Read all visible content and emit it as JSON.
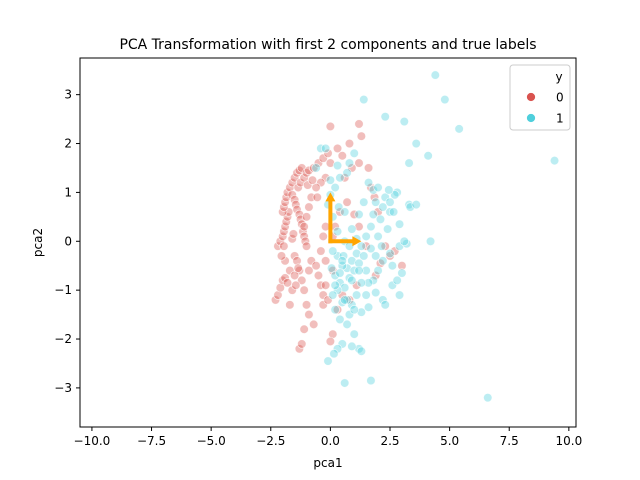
{
  "chart_data": {
    "type": "scatter",
    "title": "PCA Transformation with first 2 components and true labels",
    "xlabel": "pca1",
    "ylabel": "pca2",
    "xlim": [
      -10.5,
      10.3
    ],
    "ylim": [
      -3.8,
      3.75
    ],
    "xticks": [
      -10.0,
      -7.5,
      -5.0,
      -2.5,
      0.0,
      2.5,
      5.0,
      7.5,
      10.0
    ],
    "xtick_labels": [
      "−10.0",
      "−7.5",
      "−5.0",
      "−2.5",
      "0.0",
      "2.5",
      "5.0",
      "7.5",
      "10.0"
    ],
    "yticks": [
      -3,
      -2,
      -1,
      0,
      1,
      2,
      3
    ],
    "ytick_labels": [
      "−3",
      "−2",
      "−1",
      "0",
      "1",
      "2",
      "3"
    ],
    "grid": false,
    "legend": {
      "title": "y",
      "placement": "top-right",
      "entries": [
        {
          "label": "0",
          "color": "#d9534f"
        },
        {
          "label": "1",
          "color": "#4fcfdc"
        }
      ]
    },
    "series": [
      {
        "name": "0",
        "color": "#d9534f",
        "points": [
          [
            -2.3,
            -1.2
          ],
          [
            -2.2,
            -1.1
          ],
          [
            -2.1,
            -0.95
          ],
          [
            -2.0,
            -0.8
          ],
          [
            -1.9,
            -0.75
          ],
          [
            -1.8,
            -0.85
          ],
          [
            -1.7,
            -0.6
          ],
          [
            -2.2,
            -0.1
          ],
          [
            -2.1,
            0.0
          ],
          [
            -2.0,
            0.1
          ],
          [
            -1.95,
            0.2
          ],
          [
            -1.9,
            0.3
          ],
          [
            -1.85,
            0.4
          ],
          [
            -1.8,
            0.5
          ],
          [
            -1.75,
            0.6
          ],
          [
            -2.0,
            0.6
          ],
          [
            -1.95,
            0.7
          ],
          [
            -1.9,
            0.8
          ],
          [
            -1.85,
            0.9
          ],
          [
            -1.8,
            1.0
          ],
          [
            -1.7,
            1.1
          ],
          [
            -1.6,
            1.2
          ],
          [
            -1.5,
            1.3
          ],
          [
            -1.4,
            1.4
          ],
          [
            -1.3,
            1.45
          ],
          [
            -1.2,
            1.5
          ],
          [
            -1.6,
            0.95
          ],
          [
            -1.5,
            0.85
          ],
          [
            -1.45,
            0.75
          ],
          [
            -1.4,
            0.65
          ],
          [
            -1.3,
            0.55
          ],
          [
            -1.25,
            0.45
          ],
          [
            -1.2,
            0.35
          ],
          [
            -1.15,
            0.2
          ],
          [
            -1.1,
            0.1
          ],
          [
            -1.05,
            0.0
          ],
          [
            -1.0,
            -0.1
          ],
          [
            -1.35,
            1.1
          ],
          [
            -1.25,
            1.2
          ],
          [
            -1.1,
            1.3
          ],
          [
            -1.0,
            1.4
          ],
          [
            -0.9,
            1.45
          ],
          [
            -0.7,
            1.5
          ],
          [
            -0.5,
            1.6
          ],
          [
            -0.3,
            1.7
          ],
          [
            -0.1,
            1.8
          ],
          [
            0.0,
            1.6
          ],
          [
            -0.2,
            1.3
          ],
          [
            -0.4,
            1.2
          ],
          [
            -0.6,
            1.1
          ],
          [
            -0.8,
            0.9
          ],
          [
            -0.9,
            0.7
          ],
          [
            -1.0,
            0.5
          ],
          [
            -1.1,
            0.3
          ],
          [
            -1.5,
            -0.3
          ],
          [
            -1.4,
            -0.4
          ],
          [
            -1.3,
            -0.6
          ],
          [
            -1.2,
            -0.8
          ],
          [
            -1.1,
            -1.0
          ],
          [
            -0.9,
            -0.6
          ],
          [
            -0.8,
            -0.4
          ],
          [
            -0.6,
            -0.5
          ],
          [
            -0.5,
            -0.7
          ],
          [
            -0.4,
            -0.9
          ],
          [
            -0.3,
            -1.1
          ],
          [
            -0.2,
            -0.9
          ],
          [
            -1.0,
            -1.3
          ],
          [
            -0.9,
            -1.5
          ],
          [
            -1.1,
            -1.8
          ],
          [
            -1.3,
            -2.2
          ],
          [
            -1.2,
            -2.1
          ],
          [
            -0.7,
            -1.7
          ],
          [
            -0.3,
            -1.3
          ],
          [
            0.0,
            2.35
          ],
          [
            0.3,
            1.9
          ],
          [
            0.5,
            1.75
          ],
          [
            0.8,
            2.0
          ],
          [
            1.2,
            2.4
          ],
          [
            1.3,
            2.15
          ],
          [
            0.9,
            1.5
          ],
          [
            0.6,
            1.3
          ],
          [
            1.2,
            1.6
          ],
          [
            1.6,
            1.5
          ],
          [
            1.7,
            1.1
          ],
          [
            1.85,
            0.9
          ],
          [
            2.0,
            0.6
          ],
          [
            2.3,
            -0.1
          ],
          [
            2.5,
            -0.3
          ],
          [
            2.1,
            -0.45
          ],
          [
            1.5,
            -0.1
          ],
          [
            1.2,
            0.3
          ],
          [
            1.0,
            0.55
          ],
          [
            0.7,
            0.8
          ],
          [
            0.4,
            0.6
          ],
          [
            0.2,
            0.3
          ],
          [
            0.1,
            0.1
          ],
          [
            -0.2,
            0.3
          ],
          [
            -0.3,
            0.1
          ],
          [
            -0.4,
            -0.2
          ],
          [
            -0.2,
            -0.4
          ],
          [
            0.1,
            -0.6
          ],
          [
            0.3,
            -1.4
          ],
          [
            0.1,
            -1.9
          ],
          [
            0.0,
            -2.05
          ],
          [
            -1.7,
            -1.3
          ],
          [
            -1.6,
            -1.0
          ],
          [
            -1.9,
            -0.4
          ],
          [
            -2.05,
            -0.3
          ],
          [
            -1.95,
            -0.1
          ],
          [
            -1.6,
            0.05
          ],
          [
            -1.55,
            0.15
          ],
          [
            -1.5,
            -0.7
          ],
          [
            -1.45,
            -0.9
          ],
          [
            -1.35,
            -0.55
          ],
          [
            -0.95,
            1.15
          ],
          [
            -0.75,
            1.25
          ],
          [
            -0.55,
            0.9
          ],
          [
            3.0,
            -0.5
          ],
          [
            2.7,
            -0.2
          ],
          [
            1.9,
            -0.7
          ],
          [
            1.1,
            -0.9
          ],
          [
            0.8,
            -1.2
          ],
          [
            0.5,
            -1.1
          ],
          [
            -0.1,
            -1.2
          ]
        ]
      },
      {
        "name": "1",
        "color": "#4fcfdc",
        "points": [
          [
            4.4,
            3.4
          ],
          [
            4.8,
            2.9
          ],
          [
            5.4,
            2.3
          ],
          [
            9.4,
            1.65
          ],
          [
            6.6,
            -3.2
          ],
          [
            3.6,
            2.0
          ],
          [
            4.1,
            1.75
          ],
          [
            3.1,
            2.45
          ],
          [
            2.3,
            2.55
          ],
          [
            1.4,
            2.9
          ],
          [
            3.3,
            1.6
          ],
          [
            2.8,
            1.0
          ],
          [
            3.3,
            0.75
          ],
          [
            3.35,
            0.7
          ],
          [
            3.6,
            0.75
          ],
          [
            4.2,
            0.0
          ],
          [
            2.3,
            0.9
          ],
          [
            2.5,
            0.6
          ],
          [
            2.65,
            0.6
          ],
          [
            1.8,
            1.05
          ],
          [
            1.9,
            0.8
          ],
          [
            2.1,
            0.45
          ],
          [
            1.7,
            0.3
          ],
          [
            1.5,
            0.1
          ],
          [
            1.3,
            -0.1
          ],
          [
            1.1,
            -0.25
          ],
          [
            0.9,
            -0.4
          ],
          [
            0.7,
            -0.55
          ],
          [
            0.5,
            -0.5
          ],
          [
            0.3,
            -0.3
          ],
          [
            0.1,
            -0.2
          ],
          [
            0.05,
            -0.55
          ],
          [
            0.2,
            -0.7
          ],
          [
            0.4,
            -0.85
          ],
          [
            0.6,
            -0.95
          ],
          [
            0.8,
            -0.75
          ],
          [
            1.0,
            -0.6
          ],
          [
            1.2,
            -0.45
          ],
          [
            1.5,
            -0.6
          ],
          [
            1.8,
            -0.8
          ],
          [
            2.0,
            -0.6
          ],
          [
            2.2,
            -0.4
          ],
          [
            2.5,
            -0.25
          ],
          [
            2.9,
            -0.1
          ],
          [
            3.0,
            -0.65
          ],
          [
            2.6,
            -0.9
          ],
          [
            2.2,
            -1.2
          ],
          [
            2.3,
            -1.3
          ],
          [
            1.9,
            -1.05
          ],
          [
            1.6,
            -0.85
          ],
          [
            1.3,
            -0.85
          ],
          [
            1.1,
            -1.1
          ],
          [
            0.9,
            -1.3
          ],
          [
            0.7,
            -1.2
          ],
          [
            0.5,
            -1.25
          ],
          [
            0.3,
            -1.0
          ],
          [
            0.1,
            -1.1
          ],
          [
            0.2,
            -1.4
          ],
          [
            0.4,
            -1.6
          ],
          [
            0.6,
            -1.2
          ],
          [
            0.8,
            -1.5
          ],
          [
            1.0,
            -1.9
          ],
          [
            1.2,
            -2.2
          ],
          [
            1.3,
            -2.25
          ],
          [
            0.9,
            -2.15
          ],
          [
            0.5,
            -2.1
          ],
          [
            0.3,
            -2.2
          ],
          [
            0.15,
            -2.3
          ],
          [
            -0.1,
            -2.45
          ],
          [
            0.6,
            -2.9
          ],
          [
            1.7,
            -2.85
          ],
          [
            1.3,
            -1.45
          ],
          [
            1.6,
            -1.35
          ],
          [
            2.8,
            -0.8
          ],
          [
            2.6,
            -0.5
          ],
          [
            3.2,
            -0.05
          ],
          [
            3.1,
            0.0
          ],
          [
            2.9,
            0.35
          ],
          [
            2.4,
            0.25
          ],
          [
            2.0,
            0.1
          ],
          [
            1.0,
            1.8
          ],
          [
            0.8,
            1.6
          ],
          [
            0.7,
            1.4
          ],
          [
            0.4,
            1.3
          ],
          [
            0.2,
            1.1
          ],
          [
            0.0,
            0.95
          ],
          [
            -0.1,
            0.75
          ],
          [
            0.1,
            0.5
          ],
          [
            0.3,
            0.2
          ],
          [
            0.6,
            0.0
          ],
          [
            0.9,
            0.25
          ],
          [
            1.2,
            0.55
          ],
          [
            1.4,
            0.8
          ],
          [
            1.6,
            1.2
          ],
          [
            2.0,
            1.1
          ],
          [
            2.2,
            0.7
          ],
          [
            0.0,
            1.25
          ],
          [
            0.3,
            1.55
          ],
          [
            -0.4,
            1.9
          ],
          [
            -0.2,
            1.9
          ],
          [
            -0.6,
            1.5
          ],
          [
            2.7,
            0.95
          ],
          [
            2.45,
            1.05
          ],
          [
            1.9,
            -0.3
          ],
          [
            1.7,
            -0.15
          ],
          [
            1.4,
            -0.3
          ],
          [
            0.8,
            -0.1
          ],
          [
            0.55,
            -0.3
          ],
          [
            1.1,
            0.05
          ],
          [
            2.5,
            0.8
          ],
          [
            0.35,
            0.7
          ],
          [
            0.6,
            0.6
          ],
          [
            1.8,
            0.55
          ],
          [
            2.15,
            -0.1
          ],
          [
            1.5,
            -1.1
          ],
          [
            1.0,
            -1.4
          ],
          [
            0.7,
            -1.7
          ],
          [
            0.5,
            -0.4
          ],
          [
            0.2,
            -0.9
          ],
          [
            2.9,
            -1.1
          ],
          [
            1.2,
            -0.6
          ],
          [
            0.9,
            -0.8
          ],
          [
            0.4,
            -0.65
          ]
        ]
      }
    ],
    "arrows": [
      {
        "from": [
          0,
          0
        ],
        "to": [
          1.3,
          0
        ],
        "color": "#ffa500"
      },
      {
        "from": [
          0,
          0
        ],
        "to": [
          0,
          1.0
        ],
        "color": "#ffa500"
      }
    ]
  }
}
